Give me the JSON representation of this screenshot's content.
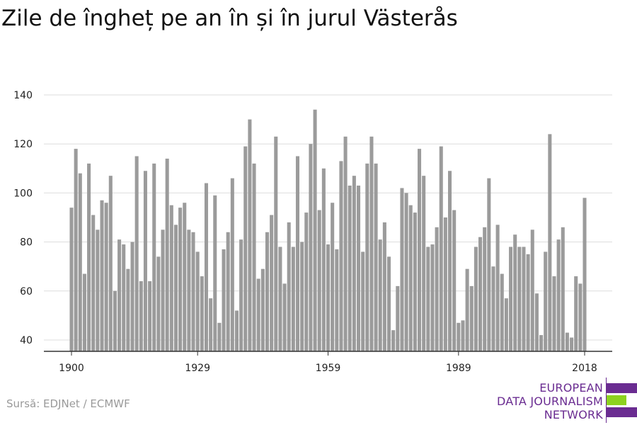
{
  "title": "Zile de îngheț pe an în și în jurul Västerås",
  "source": "Sursă: EDJNet / ECMWF",
  "logo": {
    "lines": [
      "EUROPEAN",
      "DATA JOURNALISM",
      "NETWORK"
    ],
    "colors": {
      "purple": "#6a2c91",
      "green": "#8dd21f"
    }
  },
  "chart_data": {
    "type": "bar",
    "title": "Zile de îngheț pe an în și în jurul Västerås",
    "xlabel": "",
    "ylabel": "",
    "x_start": 1900,
    "x_end": 2018,
    "ylim": [
      35,
      145
    ],
    "yticks": [
      40,
      60,
      80,
      100,
      120,
      140
    ],
    "xticks": [
      "1900",
      "1929",
      "1959",
      "1989",
      "2018"
    ],
    "grid": true,
    "bar_color": "#9b9b9b",
    "values": [
      94,
      118,
      108,
      67,
      112,
      91,
      85,
      97,
      96,
      107,
      60,
      81,
      79,
      69,
      80,
      115,
      64,
      109,
      64,
      112,
      74,
      85,
      114,
      95,
      87,
      94,
      96,
      85,
      84,
      76,
      66,
      104,
      57,
      99,
      47,
      77,
      84,
      106,
      52,
      81,
      119,
      130,
      112,
      65,
      69,
      84,
      91,
      123,
      78,
      63,
      88,
      78,
      115,
      80,
      92,
      120,
      134,
      93,
      110,
      79,
      96,
      77,
      113,
      123,
      103,
      107,
      103,
      76,
      112,
      123,
      112,
      81,
      88,
      74,
      44,
      62,
      102,
      100,
      95,
      92,
      118,
      107,
      78,
      79,
      86,
      119,
      90,
      109,
      93,
      47,
      48,
      69,
      62,
      78,
      82,
      86,
      106,
      70,
      87,
      67,
      57,
      78,
      83,
      78,
      78,
      75,
      85,
      59,
      42,
      76,
      124,
      66,
      81,
      86,
      43,
      41,
      66,
      63,
      98
    ]
  }
}
